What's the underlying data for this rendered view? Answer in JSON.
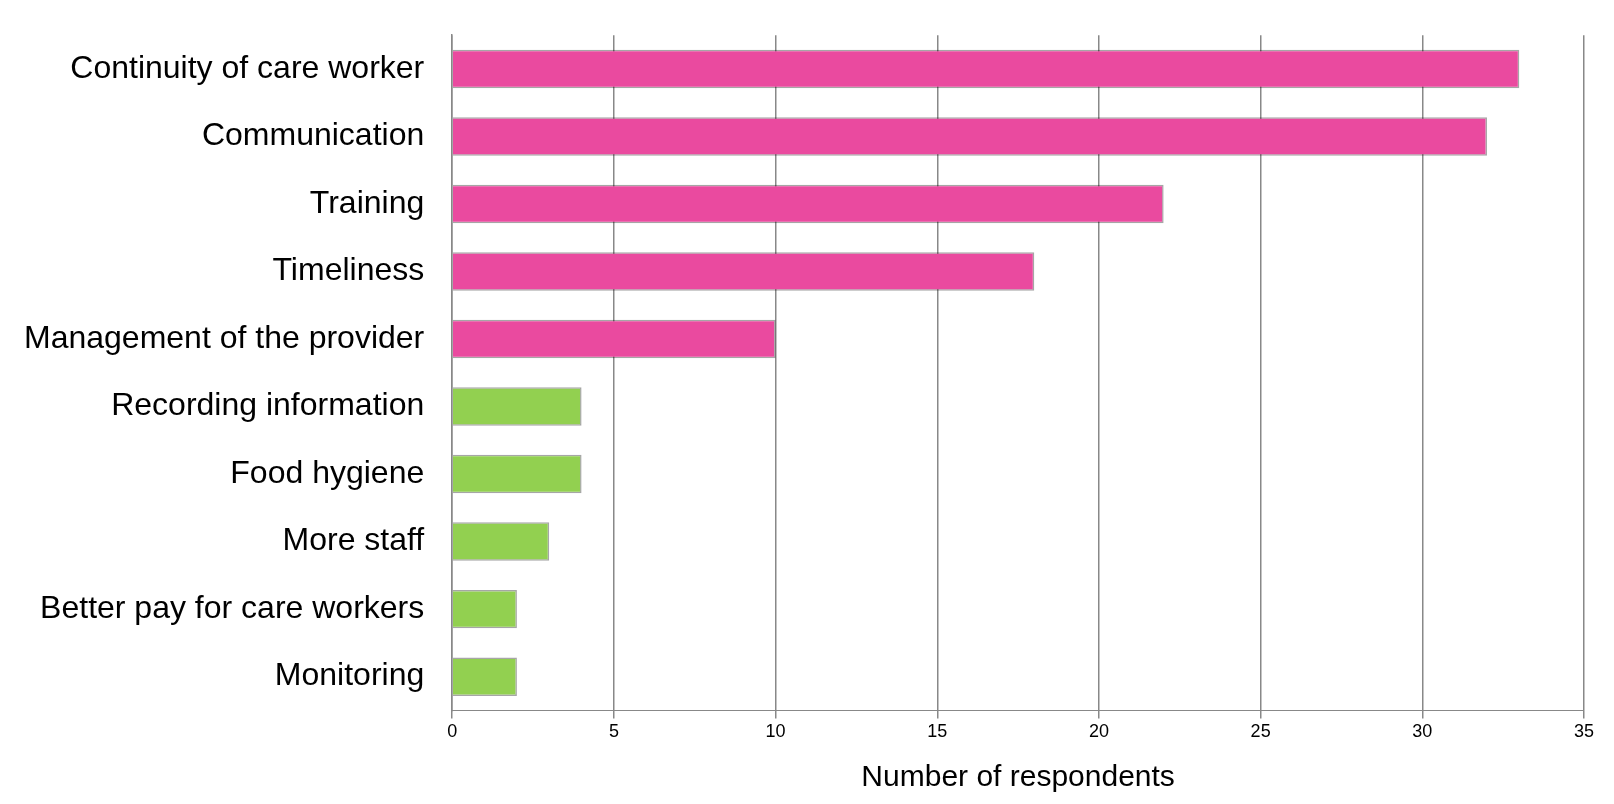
{
  "chart_data": {
    "type": "bar",
    "orientation": "horizontal",
    "xlabel": "Number of respondents",
    "categories": [
      "Continuity of care worker",
      "Communication",
      "Training",
      "Timeliness",
      "Management of the provider",
      "Recording information",
      "Food hygiene",
      "More staff",
      "Better pay for care workers",
      "Monitoring"
    ],
    "values": [
      33,
      32,
      22,
      18,
      10,
      4,
      4,
      3,
      2,
      2
    ],
    "colors": [
      "#ea4a9f",
      "#ea4a9f",
      "#ea4a9f",
      "#ea4a9f",
      "#ea4a9f",
      "#92d050",
      "#92d050",
      "#92d050",
      "#92d050",
      "#92d050"
    ],
    "xlim": [
      0,
      35
    ],
    "xticks": [
      0,
      5,
      10,
      15,
      20,
      25,
      30,
      35
    ],
    "grid": "x",
    "legend": false
  }
}
